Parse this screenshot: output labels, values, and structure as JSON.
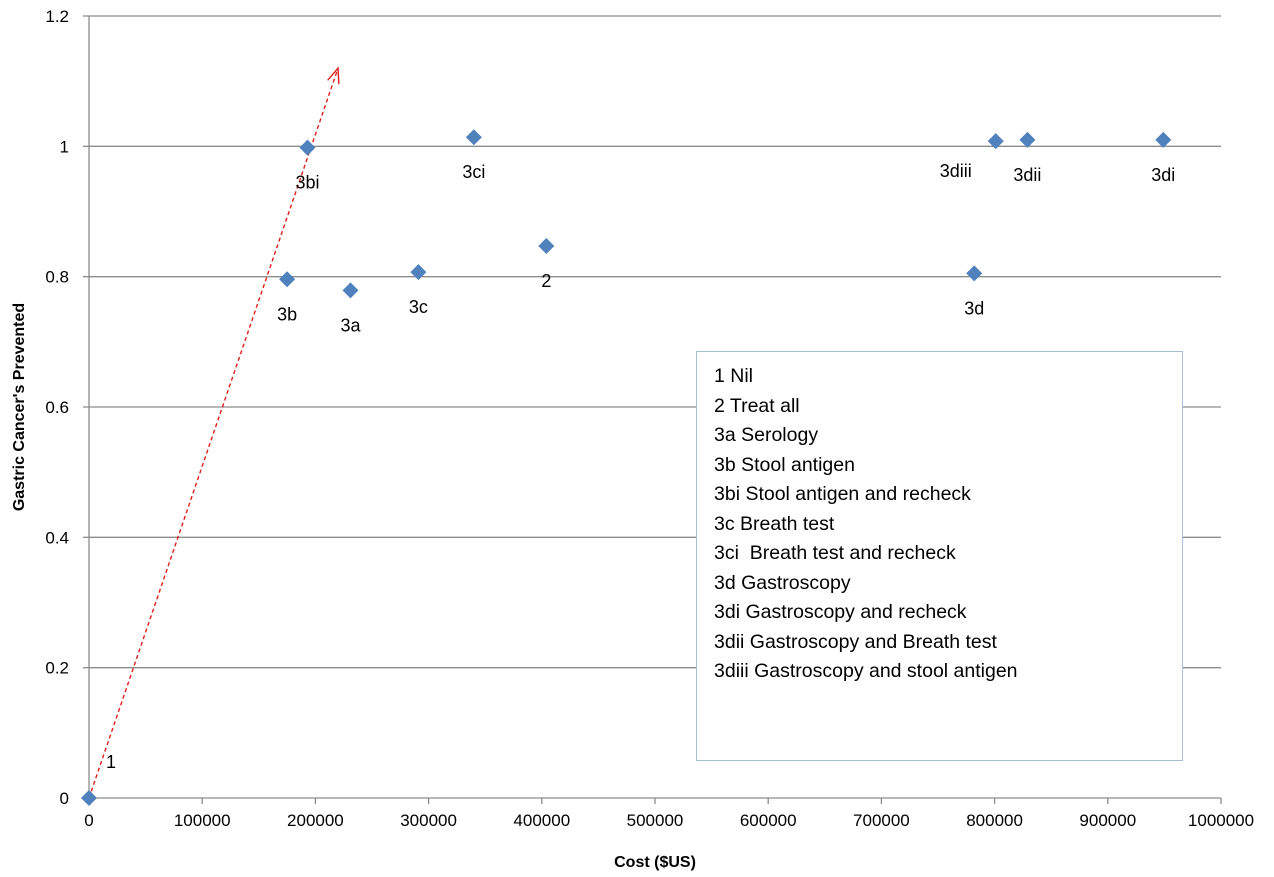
{
  "chart_data": {
    "type": "scatter",
    "xlabel": "Cost ($US)",
    "ylabel": "Gastric Cancer's Prevented",
    "xlim": [
      0,
      1000000
    ],
    "ylim": [
      0,
      1.2
    ],
    "x_ticks": [
      "0",
      "100000",
      "200000",
      "300000",
      "400000",
      "500000",
      "600000",
      "700000",
      "800000",
      "900000",
      "1000000"
    ],
    "y_ticks": [
      "0",
      "0.2",
      "0.4",
      "0.6",
      "0.8",
      "1",
      "1.2"
    ],
    "grid": "horizontal",
    "marker_color": "#4f81bd",
    "arrow_color": "#e0201b",
    "points": [
      {
        "label": "1",
        "x": 0,
        "y": 0
      },
      {
        "label": "3b",
        "x": 175000,
        "y": 0.796
      },
      {
        "label": "3bi",
        "x": 193000,
        "y": 0.998
      },
      {
        "label": "3a",
        "x": 231000,
        "y": 0.779
      },
      {
        "label": "3c",
        "x": 291000,
        "y": 0.807
      },
      {
        "label": "3ci",
        "x": 340000,
        "y": 1.014
      },
      {
        "label": "2",
        "x": 404000,
        "y": 0.847
      },
      {
        "label": "3d",
        "x": 782000,
        "y": 0.805
      },
      {
        "label": "3diii",
        "x": 801000,
        "y": 1.008
      },
      {
        "label": "3dii",
        "x": 829000,
        "y": 1.01
      },
      {
        "label": "3di",
        "x": 949000,
        "y": 1.01
      }
    ],
    "arrow": {
      "from": [
        0,
        0
      ],
      "to": [
        220000,
        1.12
      ]
    },
    "legend_placement": "center-right",
    "legend": [
      "1 Nil",
      "2 Treat all",
      "3a Serology",
      "3b Stool antigen",
      "3bi Stool antigen and recheck",
      "3c Breath test",
      "3ci  Breath test and recheck",
      "3d Gastroscopy",
      "3di Gastroscopy and recheck",
      "3dii Gastroscopy and Breath test",
      "3diii Gastroscopy and stool antigen"
    ]
  }
}
